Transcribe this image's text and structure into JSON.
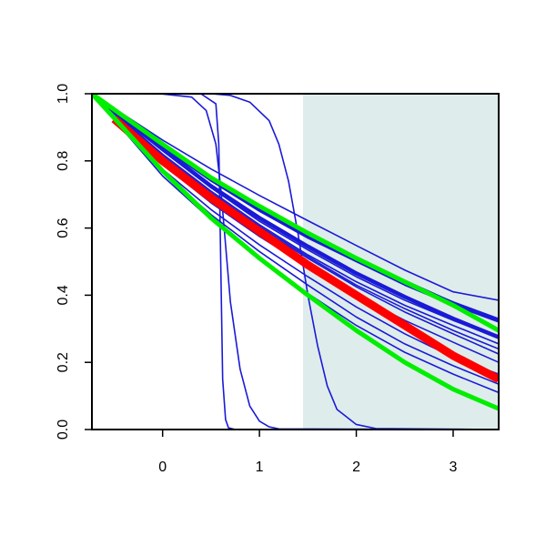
{
  "chart_data": {
    "type": "line",
    "title": "",
    "xlabel": "",
    "ylabel": "",
    "xlim": [
      -0.73,
      3.47
    ],
    "ylim": [
      0.0,
      1.0
    ],
    "x_ticks": [
      0,
      1,
      2,
      3
    ],
    "x_tick_labels": [
      "0",
      "1",
      "2",
      "3"
    ],
    "y_ticks": [
      0.0,
      0.2,
      0.4,
      0.6,
      0.8,
      1.0
    ],
    "y_tick_labels": [
      "0.0",
      "0.2",
      "0.4",
      "0.6",
      "0.8",
      "1.0"
    ],
    "grid": false,
    "shaded_region": {
      "x_start": 1.45,
      "x_end": 3.47,
      "color": "#dfecec"
    },
    "colors": {
      "blue": "#1a1ad6",
      "red": "#ff0000",
      "green": "#00ee00"
    },
    "series": [
      {
        "color": "blue",
        "width": 1.6,
        "x": [
          -0.73,
          0.0,
          0.5,
          1.0,
          1.5,
          2.0,
          2.5,
          3.0,
          3.47
        ],
        "values": [
          1.0,
          0.862,
          0.776,
          0.697,
          0.622,
          0.548,
          0.475,
          0.41,
          0.385
        ]
      },
      {
        "color": "blue",
        "width": 1.6,
        "x": [
          -0.73,
          0.0,
          0.5,
          1.0,
          1.5,
          2.0,
          2.5,
          3.0,
          3.47
        ],
        "values": [
          1.0,
          0.85,
          0.75,
          0.66,
          0.58,
          0.51,
          0.44,
          0.38,
          0.33
        ]
      },
      {
        "color": "blue",
        "width": 1.6,
        "x": [
          -0.73,
          0.0,
          0.5,
          1.0,
          1.5,
          2.0,
          2.5,
          3.0,
          3.47
        ],
        "values": [
          1.0,
          0.845,
          0.745,
          0.655,
          0.575,
          0.505,
          0.435,
          0.375,
          0.325
        ]
      },
      {
        "color": "blue",
        "width": 1.6,
        "x": [
          -0.73,
          0.0,
          0.5,
          1.0,
          1.5,
          2.0,
          2.5,
          3.0,
          3.47
        ],
        "values": [
          1.0,
          0.84,
          0.74,
          0.65,
          0.57,
          0.5,
          0.43,
          0.37,
          0.32
        ]
      },
      {
        "color": "blue",
        "width": 1.6,
        "x": [
          -0.73,
          0.0,
          0.5,
          1.0,
          1.5,
          2.0,
          2.5,
          3.0,
          3.47
        ],
        "values": [
          1.0,
          0.83,
          0.72,
          0.62,
          0.535,
          0.455,
          0.385,
          0.325,
          0.275
        ]
      },
      {
        "color": "blue",
        "width": 1.6,
        "x": [
          -0.73,
          0.0,
          0.5,
          1.0,
          1.5,
          2.0,
          2.5,
          3.0,
          3.47
        ],
        "values": [
          1.0,
          0.82,
          0.71,
          0.61,
          0.52,
          0.44,
          0.37,
          0.31,
          0.255
        ]
      },
      {
        "color": "blue",
        "width": 1.6,
        "x": [
          -0.73,
          0.0,
          0.5,
          1.0,
          1.5,
          2.0,
          2.5,
          3.0,
          3.47
        ],
        "values": [
          1.0,
          0.815,
          0.705,
          0.605,
          0.515,
          0.43,
          0.36,
          0.295,
          0.24
        ]
      },
      {
        "color": "blue",
        "width": 1.6,
        "x": [
          -0.73,
          0.0,
          0.5,
          1.0,
          1.5,
          2.0,
          2.5,
          3.0,
          3.47
        ],
        "values": [
          1.0,
          0.81,
          0.7,
          0.6,
          0.51,
          0.425,
          0.35,
          0.285,
          0.225
        ]
      },
      {
        "color": "blue",
        "width": 1.6,
        "x": [
          -0.73,
          0.0,
          0.5,
          1.0,
          1.5,
          2.0,
          2.5,
          3.0,
          3.47
        ],
        "values": [
          1.0,
          0.79,
          0.675,
          0.575,
          0.485,
          0.4,
          0.325,
          0.26,
          0.2
        ]
      },
      {
        "color": "blue",
        "width": 1.6,
        "x": [
          -0.73,
          0.0,
          0.5,
          1.0,
          1.5,
          2.0,
          2.5,
          3.0,
          3.47
        ],
        "values": [
          1.0,
          0.775,
          0.655,
          0.55,
          0.455,
          0.365,
          0.285,
          0.215,
          0.165
        ]
      },
      {
        "color": "blue",
        "width": 1.6,
        "x": [
          -0.73,
          0.0,
          0.5,
          1.0,
          1.5,
          2.0,
          2.5,
          3.0,
          3.47
        ],
        "values": [
          1.0,
          0.765,
          0.64,
          0.53,
          0.43,
          0.335,
          0.255,
          0.19,
          0.135
        ]
      },
      {
        "color": "blue",
        "width": 1.6,
        "x": [
          -0.73,
          0.0,
          0.5,
          1.0,
          1.5,
          2.0,
          2.5,
          3.0,
          3.47
        ],
        "values": [
          1.0,
          0.755,
          0.625,
          0.51,
          0.405,
          0.31,
          0.23,
          0.165,
          0.11
        ]
      },
      {
        "color": "blue",
        "width": 4.5,
        "x": [
          -0.73,
          0.0,
          0.5,
          1.0,
          1.5,
          2.0,
          2.5,
          3.0,
          3.47
        ],
        "values": [
          1.0,
          0.85,
          0.745,
          0.655,
          0.575,
          0.505,
          0.44,
          0.375,
          0.325
        ]
      },
      {
        "color": "blue",
        "width": 4.5,
        "x": [
          -0.73,
          0.0,
          0.5,
          1.0,
          1.5,
          2.0,
          2.5,
          3.0,
          3.47
        ],
        "values": [
          1.0,
          0.835,
          0.725,
          0.63,
          0.545,
          0.465,
          0.395,
          0.33,
          0.275
        ]
      },
      {
        "color": "blue",
        "width": 1.6,
        "x": [
          -0.73,
          0.4,
          0.55,
          0.58,
          0.6,
          0.62,
          0.65,
          0.68,
          0.75,
          3.47
        ],
        "values": [
          1.0,
          0.999,
          0.97,
          0.85,
          0.5,
          0.15,
          0.03,
          0.005,
          0.0,
          0.0
        ]
      },
      {
        "color": "blue",
        "width": 1.6,
        "x": [
          -0.73,
          0.0,
          0.3,
          0.45,
          0.55,
          0.6,
          0.65,
          0.7,
          0.8,
          0.9,
          1.0,
          1.1,
          1.2,
          3.47
        ],
        "values": [
          1.0,
          0.999,
          0.99,
          0.95,
          0.85,
          0.72,
          0.55,
          0.38,
          0.18,
          0.07,
          0.025,
          0.008,
          0.002,
          0.0
        ]
      },
      {
        "color": "blue",
        "width": 1.6,
        "x": [
          -0.73,
          0.5,
          0.7,
          0.9,
          1.1,
          1.2,
          1.3,
          1.4,
          1.5,
          1.6,
          1.7,
          1.8,
          2.0,
          2.2,
          3.47
        ],
        "values": [
          1.0,
          1.0,
          0.995,
          0.975,
          0.92,
          0.85,
          0.74,
          0.58,
          0.4,
          0.25,
          0.13,
          0.06,
          0.015,
          0.003,
          0.0
        ]
      },
      {
        "color": "green",
        "width": 5,
        "x": [
          -0.73,
          0.0,
          0.5,
          1.0,
          1.5,
          2.0,
          2.5,
          3.0,
          3.47
        ],
        "values": [
          1.0,
          0.85,
          0.75,
          0.665,
          0.585,
          0.51,
          0.44,
          0.37,
          0.295
        ]
      },
      {
        "color": "red",
        "width": 9,
        "x": [
          -0.5,
          0.0,
          0.5,
          1.0,
          1.5,
          2.0,
          2.5,
          3.0,
          3.47
        ],
        "values": [
          0.925,
          0.8,
          0.69,
          0.59,
          0.49,
          0.4,
          0.31,
          0.22,
          0.15
        ]
      },
      {
        "color": "green",
        "width": 5,
        "x": [
          -0.73,
          0.0,
          0.5,
          1.0,
          1.5,
          2.0,
          2.5,
          3.0,
          3.47
        ],
        "values": [
          1.0,
          0.77,
          0.63,
          0.51,
          0.4,
          0.295,
          0.2,
          0.12,
          0.062
        ]
      }
    ]
  }
}
